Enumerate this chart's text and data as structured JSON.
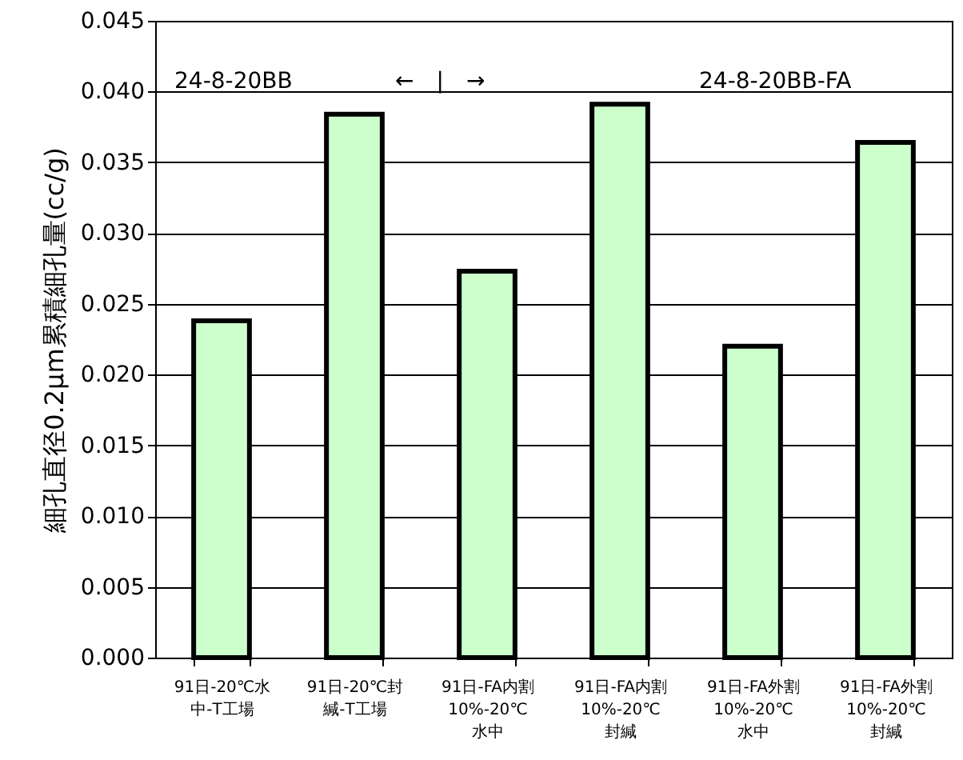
{
  "chart_data": {
    "type": "bar",
    "ylabel": "細孔直径0.2μm累積細孔量(cc/g)",
    "categories": [
      "91日-20℃水中-T工場",
      "91日-20℃封緘-T工場",
      "91日-FA内割10%-20℃水中",
      "91日-FA内割10%-20℃封緘",
      "91日-FA外割10%-20℃水中",
      "91日-FA外割10%-20℃封緘"
    ],
    "values": [
      0.0238,
      0.0384,
      0.0273,
      0.0391,
      0.022,
      0.0364
    ],
    "color": "#ccffcc",
    "ylim": [
      0,
      0.045
    ],
    "yticks": [
      {
        "value": 0,
        "label": "0.000"
      },
      {
        "value": 0.005,
        "label": "0.005"
      },
      {
        "value": 0.01,
        "label": "0.010"
      },
      {
        "value": 0.015,
        "label": "0.015"
      },
      {
        "value": 0.02,
        "label": "0.020"
      },
      {
        "value": 0.025,
        "label": "0.025"
      },
      {
        "value": 0.03,
        "label": "0.030"
      },
      {
        "value": 0.035,
        "label": "0.035"
      },
      {
        "value": 0.04,
        "label": "0.040"
      },
      {
        "value": 0.045,
        "label": "0.045"
      }
    ],
    "grid": "y",
    "annotations": [
      "24-8-20BB",
      "←　|　→",
      "24-8-20BB-FA"
    ]
  }
}
